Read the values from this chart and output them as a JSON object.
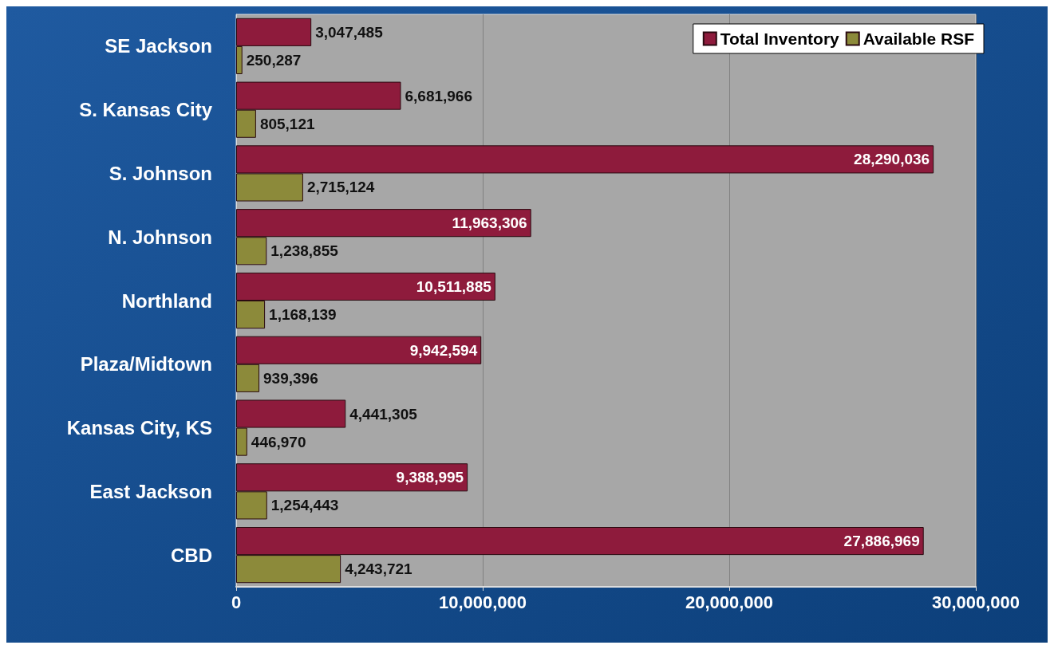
{
  "chart_data": {
    "type": "bar",
    "orientation": "horizontal",
    "categories": [
      "SE Jackson",
      "S. Kansas City",
      "S. Johnson",
      "N. Johnson",
      "Northland",
      "Plaza/Midtown",
      "Kansas City, KS",
      "East Jackson",
      "CBD"
    ],
    "series": [
      {
        "name": "Total Inventory",
        "color": "#8e1b3c",
        "values": [
          3047485,
          6681966,
          28290036,
          11963306,
          10511885,
          9942594,
          4441305,
          9388995,
          27886969
        ],
        "value_labels": [
          "3,047,485",
          "6,681,966",
          "28,290,036",
          "11,963,306",
          "10,511,885",
          "9,942,594",
          "4,441,305",
          "9,388,995",
          "27,886,969"
        ]
      },
      {
        "name": "Available RSF",
        "color": "#8c8a3a",
        "values": [
          250287,
          805121,
          2715124,
          1238855,
          1168139,
          939396,
          446970,
          1254443,
          4243721
        ],
        "value_labels": [
          "250,287",
          "805,121",
          "2,715,124",
          "1,238,855",
          "1,168,139",
          "939,396",
          "446,970",
          "1,254,443",
          "4,243,721"
        ]
      }
    ],
    "xlim": [
      0,
      30000000
    ],
    "xticks": [
      0,
      {
        "value": 10000000,
        "label": "10,000,000"
      },
      {
        "value": 20000000,
        "label": "20,000,000"
      },
      {
        "value": 30000000,
        "label": "30,000,000"
      }
    ],
    "grid": "x",
    "legend": "top right"
  }
}
